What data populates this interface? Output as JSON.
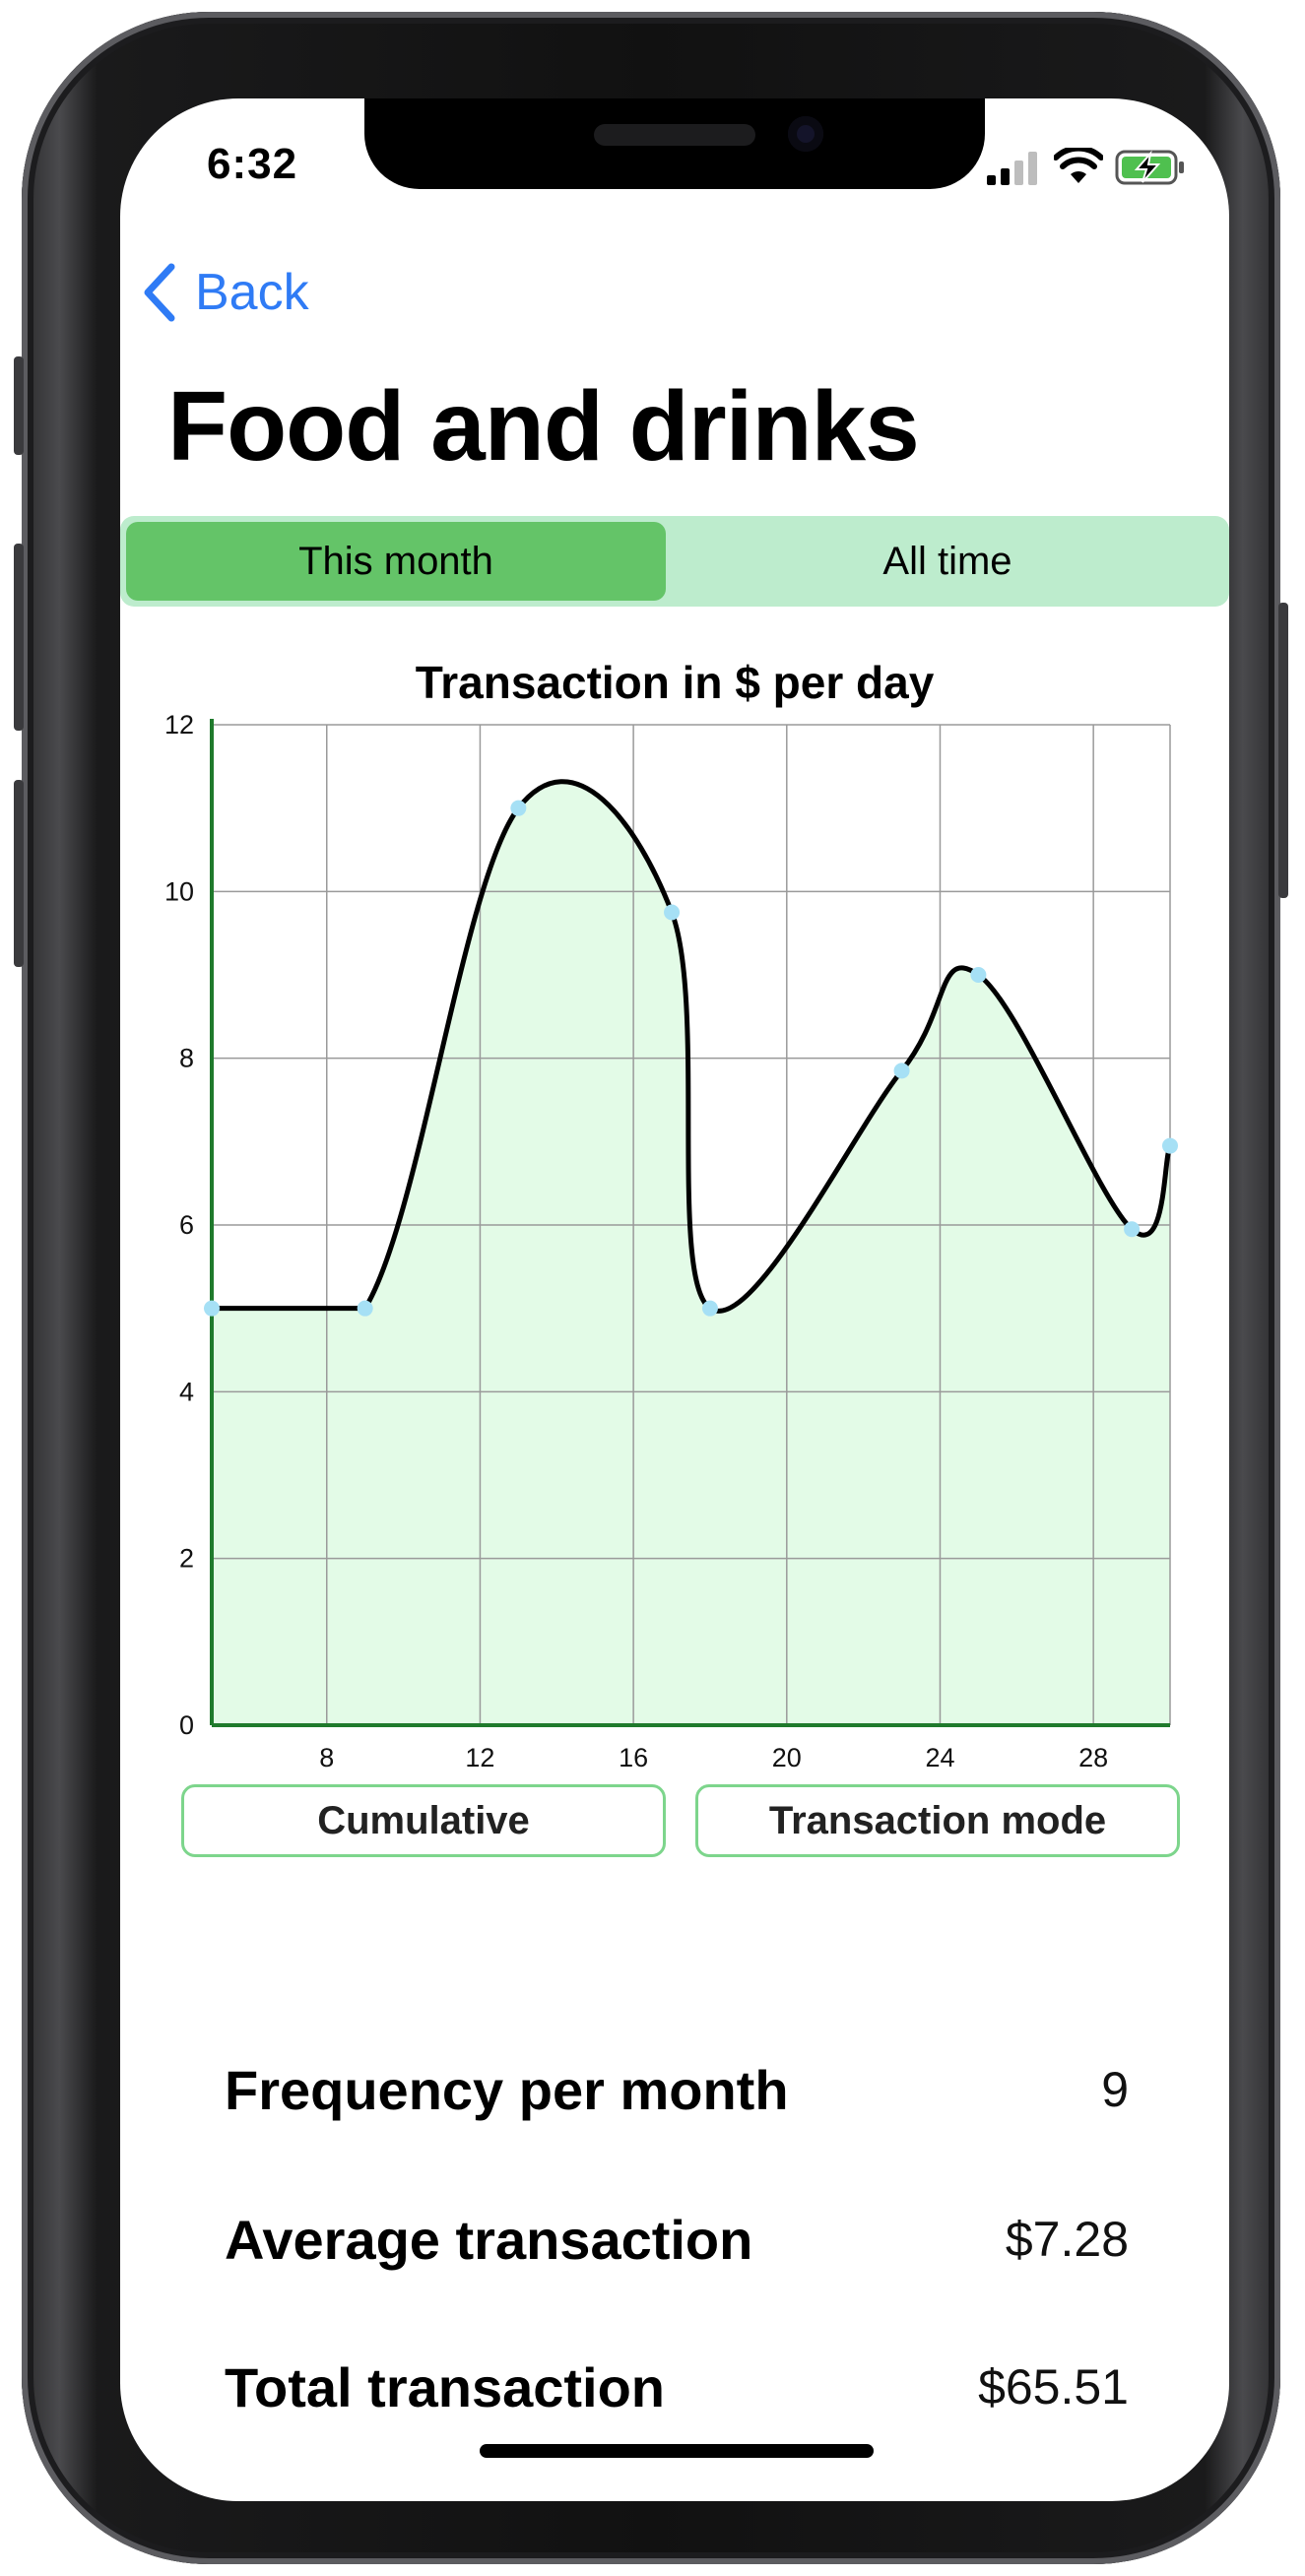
{
  "status_bar": {
    "time": "6:32"
  },
  "nav": {
    "back_label": "Back"
  },
  "page": {
    "title": "Food and drinks"
  },
  "segmented_control": {
    "options": [
      "This month",
      "All time"
    ],
    "selected": "This month"
  },
  "chart_data": {
    "type": "area",
    "title": "Transaction in $ per day",
    "xlabel": "",
    "ylabel": "",
    "x_ticks": [
      8,
      12,
      16,
      20,
      24,
      28
    ],
    "y_ticks": [
      0,
      2,
      4,
      6,
      8,
      10,
      12
    ],
    "xlim": [
      5,
      30
    ],
    "ylim": [
      0,
      12
    ],
    "grid": true,
    "series": [
      {
        "x": [
          5,
          9,
          13,
          17,
          18,
          23,
          25,
          29,
          30
        ],
        "y": [
          5,
          5,
          11,
          9.75,
          5,
          7.85,
          9,
          5.95,
          6.95
        ]
      }
    ],
    "colors": {
      "fill": "#e3fbe7",
      "line": "#000000",
      "points": "#a6e0f5",
      "axis": "#1f7a2c",
      "grid": "#9a9a9a"
    }
  },
  "chart_buttons": {
    "cumulative": "Cumulative",
    "transaction_mode": "Transaction mode"
  },
  "stats": [
    {
      "label": "Frequency per month",
      "value": "9"
    },
    {
      "label": "Average transaction",
      "value": "$7.28"
    },
    {
      "label": "Total transaction",
      "value": "$65.51"
    }
  ],
  "colors": {
    "accent": "#2f7bf5",
    "segment_active": "#64c468",
    "segment_bg": "#bdeccd",
    "button_border": "#7dd58c"
  }
}
